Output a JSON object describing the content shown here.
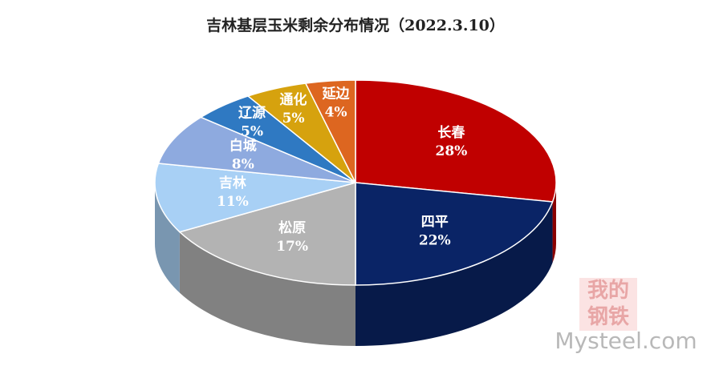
{
  "chart_data": {
    "type": "pie3d",
    "title": "吉林基层玉米剩余分布情况（2022.3.10）",
    "categories": [
      "长春",
      "四平",
      "松原",
      "吉林",
      "白城",
      "辽源",
      "通化",
      "延边"
    ],
    "values": [
      28,
      22,
      17,
      11,
      8,
      5,
      5,
      4
    ],
    "value_labels": [
      "28%",
      "22%",
      "17%",
      "11%",
      "8%",
      "5%",
      "5%",
      "4%"
    ],
    "colors": [
      "#c00000",
      "#0a2466",
      "#b3b3b3",
      "#a8d0f5",
      "#8eaadf",
      "#2f79c2",
      "#d6a20e",
      "#dd6620"
    ]
  },
  "watermark": {
    "line1": "我的",
    "line2": "钢铁",
    "site": "Mysteel.com"
  }
}
